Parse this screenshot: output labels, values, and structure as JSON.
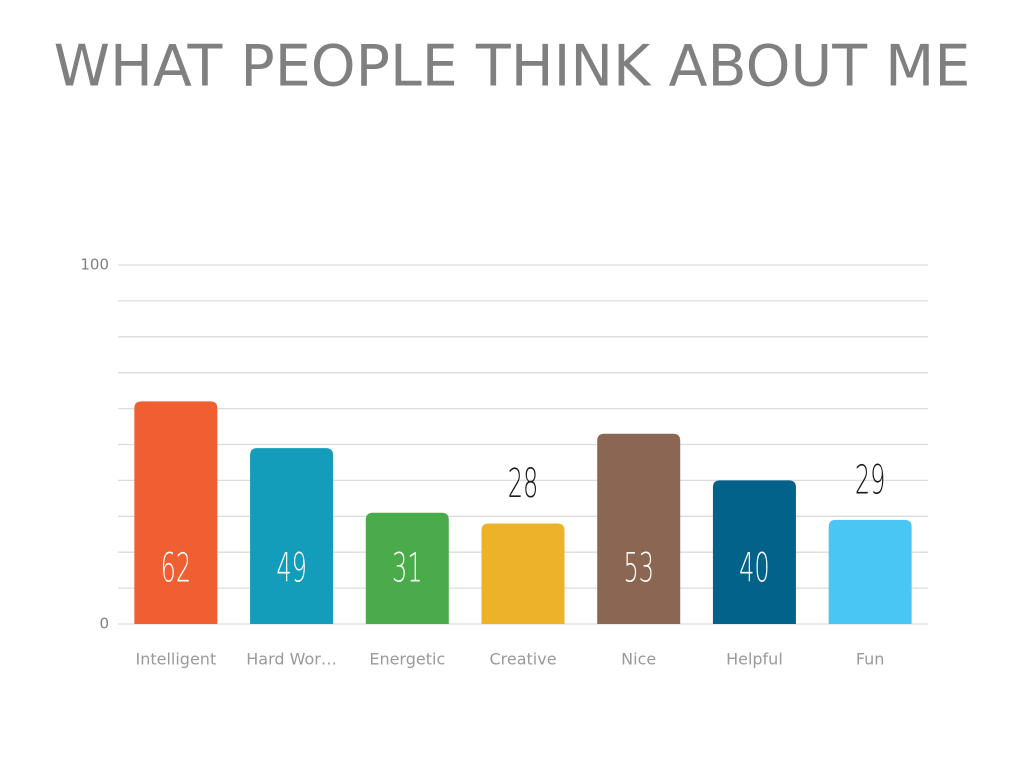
{
  "chart_data": {
    "type": "bar",
    "title": "WHAT PEOPLE THINK ABOUT ME",
    "categories": [
      "Intelligent",
      "Hard Wor…",
      "Energetic",
      "Creative",
      "Nice",
      "Helpful",
      "Fun"
    ],
    "values": [
      62,
      49,
      31,
      28,
      53,
      40,
      29
    ],
    "colors": [
      "#f05f32",
      "#149dba",
      "#4aab4a",
      "#ecb22a",
      "#8a6653",
      "#03628a",
      "#49c6f3"
    ],
    "ylim": [
      0,
      100
    ],
    "yticks": [
      0,
      100
    ],
    "grid_lines": [
      0,
      10,
      20,
      30,
      40,
      50,
      60,
      70,
      80,
      90,
      100
    ],
    "grid": true
  }
}
